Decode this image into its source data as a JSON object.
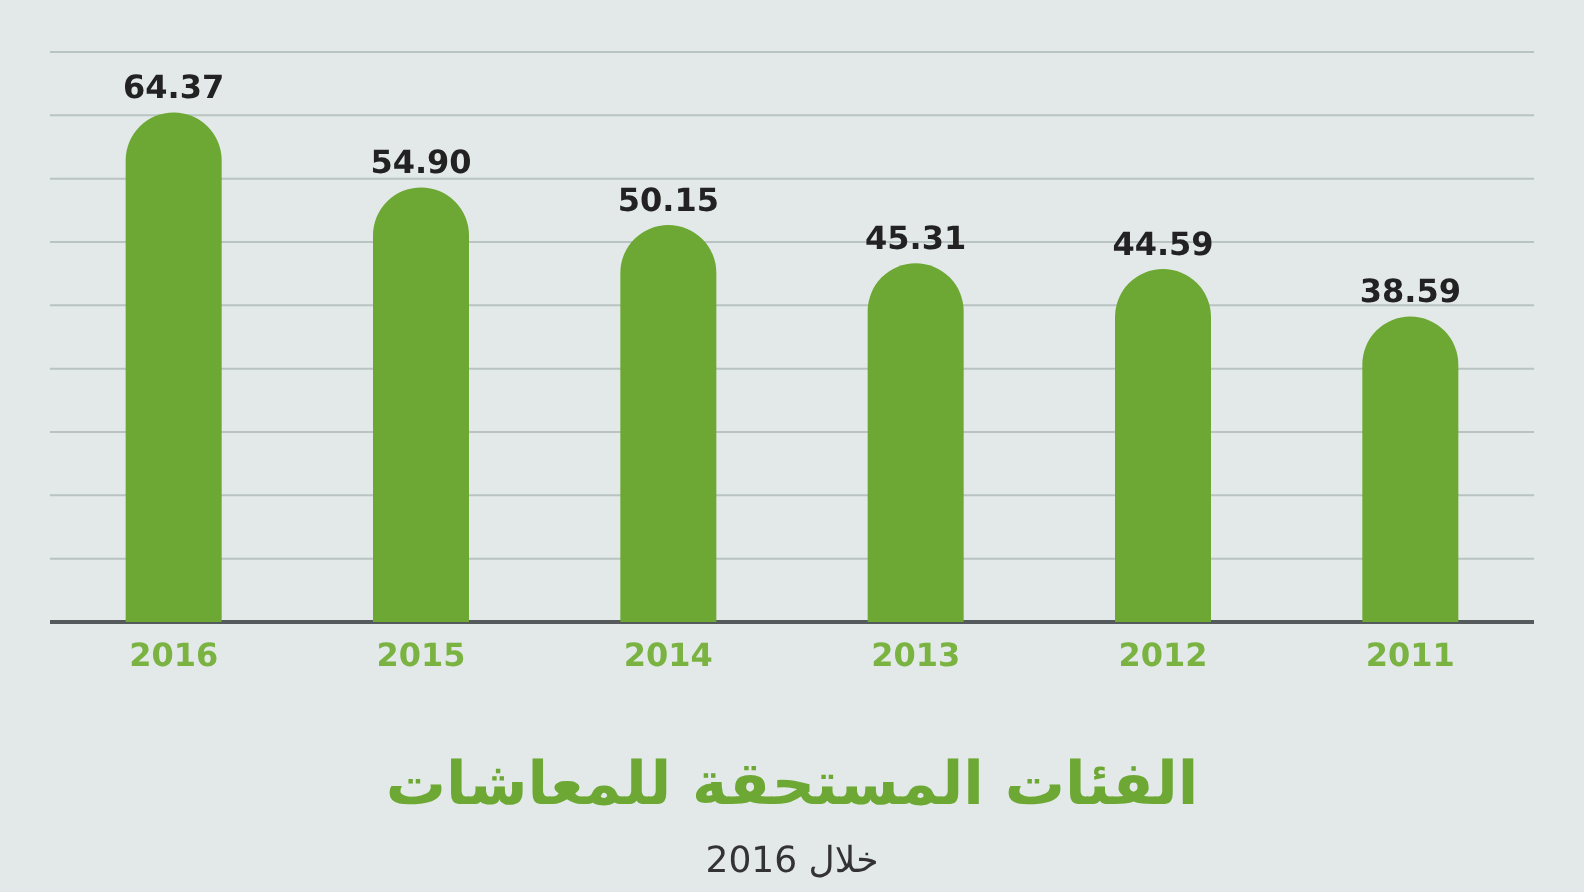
{
  "chart_data": {
    "type": "bar",
    "title": "الفئات المستحقة للمعاشات",
    "subtitle": "خلال 2016",
    "categories": [
      "2016",
      "2015",
      "2014",
      "2013",
      "2012",
      "2011"
    ],
    "values": [
      64.37,
      54.9,
      50.15,
      45.31,
      44.59,
      38.59
    ],
    "value_labels": [
      "64.37",
      "54.90",
      "50.15",
      "45.31",
      "44.59",
      "38.59"
    ],
    "color": "#6ca833",
    "ylim": [
      0,
      72
    ],
    "yticks": [
      {
        "value": 0,
        "label": null
      },
      {
        "value": 8,
        "label": null
      },
      {
        "value": 16,
        "label": null
      },
      {
        "value": 24,
        "label": null
      },
      {
        "value": 32,
        "label": null
      },
      {
        "value": 40,
        "label": null
      },
      {
        "value": 48,
        "label": null
      },
      {
        "value": 56,
        "label": null
      },
      {
        "value": 64,
        "label": null
      },
      {
        "value": 72,
        "label": null
      }
    ],
    "grid": "y"
  }
}
